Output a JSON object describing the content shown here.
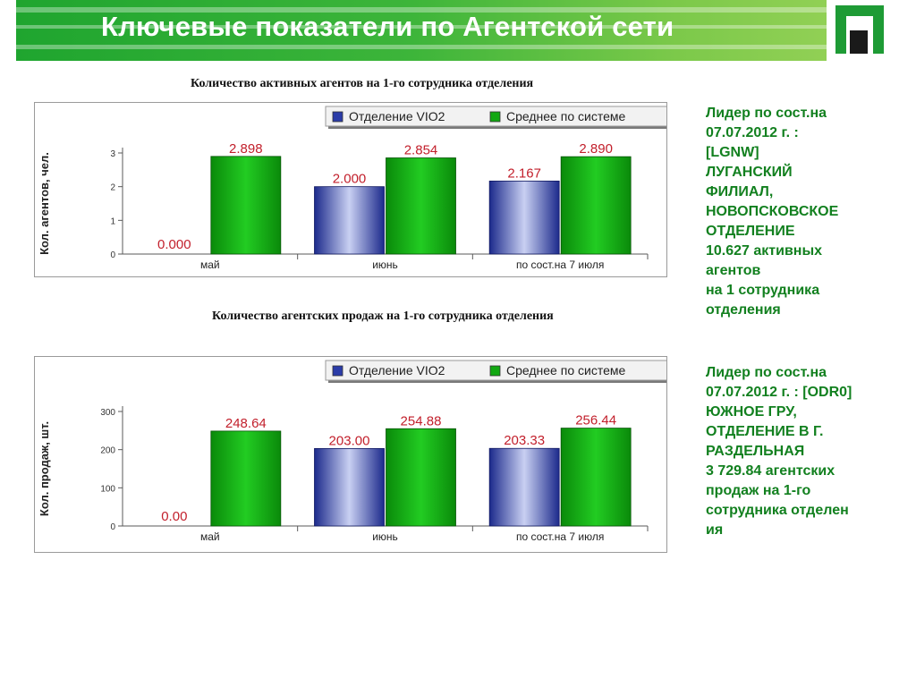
{
  "header": {
    "title": "Ключевые показатели по Агентской сети",
    "logo_icon": "company-logo-icon",
    "colors": {
      "band_start": "#1fa52f",
      "band_end": "#9bd35a",
      "logo_green": "#1e9b35",
      "logo_dark": "#1a1a1a"
    }
  },
  "colors": {
    "series_branch": "#2b3ca8",
    "series_average": "#12a812",
    "value_label": "#c21f2b",
    "leader_text": "#12801f"
  },
  "chart_data": [
    {
      "type": "bar",
      "title": "Количество активных агентов на 1-го сотрудника  отделения",
      "ylabel": "Кол. агентов, чел.",
      "xlabel": "",
      "categories": [
        "май",
        "июнь",
        "по сост.на 7 июля"
      ],
      "series": [
        {
          "name": "Отделение VIO2",
          "values": [
            0.0,
            2.0,
            2.167
          ],
          "labels": [
            "0.000",
            "2.000",
            "2.167"
          ]
        },
        {
          "name": "Среднее по системе",
          "values": [
            2.898,
            2.854,
            2.89
          ],
          "labels": [
            "2.898",
            "2.854",
            "2.890"
          ]
        }
      ],
      "ylim": [
        0,
        3
      ],
      "yticks": [
        "0",
        "1",
        "2",
        "3"
      ],
      "legend_position": "top-right",
      "grid": false
    },
    {
      "type": "bar",
      "title": "Количество агентских продаж на 1-го сотрудника  отделения",
      "ylabel": "Кол. продаж, шт.",
      "xlabel": "",
      "categories": [
        "май",
        "июнь",
        "по сост.на 7 июля"
      ],
      "series": [
        {
          "name": "Отделение VIO2",
          "values": [
            0.0,
            203.0,
            203.33
          ],
          "labels": [
            "0.00",
            "203.00",
            "203.33"
          ]
        },
        {
          "name": "Среднее по системе",
          "values": [
            248.64,
            254.88,
            256.44
          ],
          "labels": [
            "248.64",
            "254.88",
            "256.44"
          ]
        }
      ],
      "ylim": [
        0,
        300
      ],
      "yticks": [
        "0",
        "100",
        "200",
        "300"
      ],
      "legend_position": "top-right",
      "grid": false
    }
  ],
  "leaders": [
    {
      "text": "Лидер по сост.на\n07.07.2012 г. :\n[LGNW]\nЛУГАНСКИЙ\nФИЛИАЛ,\nНОВОПСКОВСКОЕ\nОТДЕЛЕНИЕ\n10.627 активных\nагентов\nна 1 сотрудника\nотделения"
    },
    {
      "text": "Лидер по сост.на\n07.07.2012 г. : [ODR0]\nЮЖНОЕ ГРУ,\nОТДЕЛЕНИЕ В Г.\nРАЗДЕЛЬНАЯ\n3 729.84 агентских\nпродаж на 1-го\nсотрудника отделен\nия"
    }
  ]
}
